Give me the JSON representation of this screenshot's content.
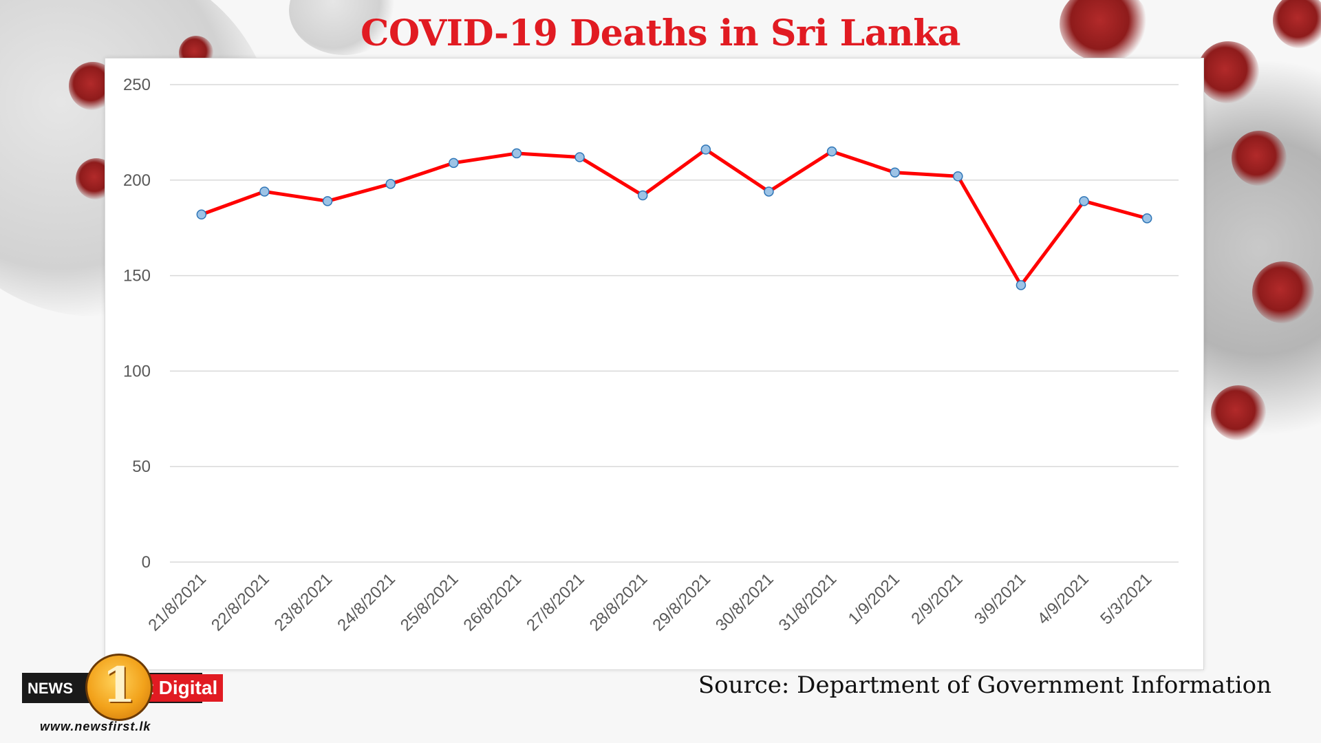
{
  "title": "COVID-19 Deaths in Sri Lanka",
  "source": "Source: Department of Government Information",
  "logo": {
    "news_text": "NEWS",
    "number": "1",
    "digital_text": "st Digital",
    "url": "www.newsfirst.lk"
  },
  "colors": {
    "title": "#e11b22",
    "line": "#ff0000",
    "marker_fill": "#9dc3e6",
    "marker_stroke": "#2e75b6",
    "grid": "#d9d9d9",
    "tick": "#595959"
  },
  "chart_data": {
    "type": "line",
    "title": "COVID-19 Deaths in Sri Lanka",
    "xlabel": "",
    "ylabel": "",
    "ylim": [
      0,
      250
    ],
    "yticks": [
      0,
      50,
      100,
      150,
      200,
      250
    ],
    "grid": true,
    "categories": [
      "21/8/2021",
      "22/8/2021",
      "23/8/2021",
      "24/8/2021",
      "25/8/2021",
      "26/8/2021",
      "27/8/2021",
      "28/8/2021",
      "29/8/2021",
      "30/8/2021",
      "31/8/2021",
      "1/9/2021",
      "2/9/2021",
      "3/9/2021",
      "4/9/2021",
      "5/3/2021"
    ],
    "series": [
      {
        "name": "Deaths",
        "values": [
          182,
          194,
          189,
          198,
          209,
          214,
          212,
          192,
          216,
          194,
          215,
          204,
          202,
          145,
          189,
          180
        ]
      }
    ]
  }
}
